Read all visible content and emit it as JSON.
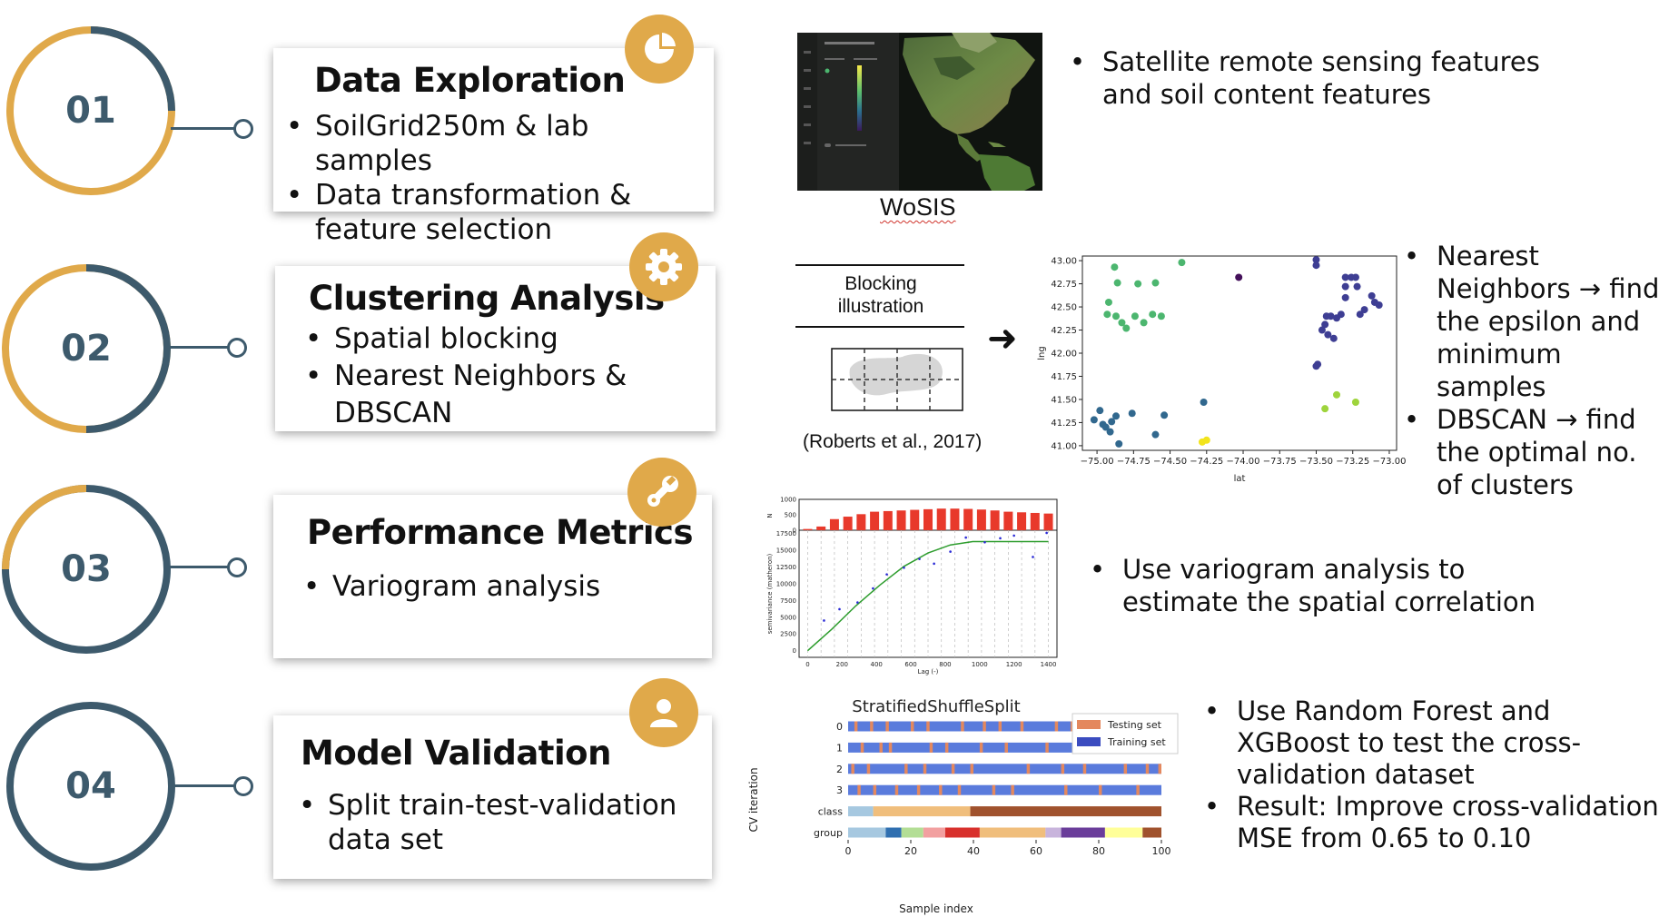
{
  "colors": {
    "accent_gold": "#e0a94a",
    "accent_slate": "#3d5a6c"
  },
  "steps": [
    {
      "number": "01",
      "title": "Data Exploration",
      "icon": "pie-chart-icon",
      "bullets": [
        "SoilGrid250m & lab samples",
        "Data transformation & feature selection"
      ]
    },
    {
      "number": "02",
      "title": "Clustering Analysis",
      "icon": "gear-icon",
      "bullets": [
        "Spatial blocking",
        "Nearest Neighbors  & DBSCAN"
      ]
    },
    {
      "number": "03",
      "title": "Performance Metrics",
      "icon": "wrench-icon",
      "bullets": [
        "Variogram analysis"
      ]
    },
    {
      "number": "04",
      "title": "Model Validation",
      "icon": "user-icon",
      "bullets": [
        "Split train-test-validation data set"
      ]
    }
  ],
  "figures": {
    "wosis_caption": "WoSIS",
    "blocking_title": "Blocking illustration",
    "blocking_citation": "(Roberts et al., 2017)",
    "arrow": "➜"
  },
  "notes": {
    "row1": [
      "Satellite remote sensing features and soil content features"
    ],
    "row2": [
      "Nearest Neighbors → find the epsilon and minimum samples",
      "DBSCAN → find the optimal no. of clusters"
    ],
    "row3": [
      "Use variogram analysis to estimate the spatial correlation"
    ],
    "row4": [
      "Use Random Forest and XGBoost to test the cross-validation dataset",
      "Result: Improve cross-validation MSE from 0.65 to 0.10"
    ]
  },
  "chart_data": [
    {
      "type": "scatter",
      "title": "",
      "xlabel": "lat",
      "ylabel": "lng",
      "xlim": [
        -75.1,
        -72.95
      ],
      "ylim": [
        40.95,
        43.05
      ],
      "xticks": [
        "−75.00",
        "−74.75",
        "−74.50",
        "−74.25",
        "−74.00",
        "−73.75",
        "−73.50",
        "−73.25",
        "−73.00"
      ],
      "yticks": [
        "41.00",
        "41.25",
        "41.50",
        "41.75",
        "42.00",
        "42.25",
        "42.50",
        "42.75",
        "43.00"
      ],
      "series": [
        {
          "name": "cluster-green",
          "color": "#4cb66f",
          "points": [
            [
              -74.88,
              42.93
            ],
            [
              -74.92,
              42.55
            ],
            [
              -74.86,
              42.76
            ],
            [
              -74.72,
              42.75
            ],
            [
              -74.6,
              42.76
            ],
            [
              -74.42,
              42.98
            ],
            [
              -74.93,
              42.42
            ],
            [
              -74.87,
              42.4
            ],
            [
              -74.83,
              42.33
            ],
            [
              -74.8,
              42.27
            ],
            [
              -74.74,
              42.4
            ],
            [
              -74.68,
              42.33
            ],
            [
              -74.62,
              42.42
            ],
            [
              -74.56,
              42.4
            ]
          ]
        },
        {
          "name": "cluster-blue",
          "color": "#31688e",
          "points": [
            [
              -75.02,
              41.28
            ],
            [
              -74.98,
              41.38
            ],
            [
              -74.96,
              41.23
            ],
            [
              -74.94,
              41.2
            ],
            [
              -74.91,
              41.15
            ],
            [
              -74.9,
              41.26
            ],
            [
              -74.87,
              41.32
            ],
            [
              -74.85,
              41.02
            ],
            [
              -74.76,
              41.35
            ],
            [
              -74.6,
              41.12
            ],
            [
              -74.54,
              41.33
            ],
            [
              -74.27,
              41.47
            ]
          ]
        },
        {
          "name": "cluster-purple",
          "color": "#3e3e93",
          "points": [
            [
              -73.5,
              43.01
            ],
            [
              -73.5,
              42.95
            ],
            [
              -73.3,
              42.82
            ],
            [
              -73.26,
              42.82
            ],
            [
              -73.23,
              42.82
            ],
            [
              -73.3,
              42.72
            ],
            [
              -73.22,
              42.72
            ],
            [
              -73.12,
              42.62
            ],
            [
              -73.1,
              42.55
            ],
            [
              -73.17,
              42.47
            ],
            [
              -73.2,
              42.42
            ],
            [
              -73.33,
              42.42
            ],
            [
              -73.4,
              42.4
            ],
            [
              -73.43,
              42.4
            ],
            [
              -73.36,
              42.38
            ],
            [
              -73.44,
              42.31
            ],
            [
              -73.46,
              42.25
            ],
            [
              -73.42,
              42.2
            ],
            [
              -73.38,
              42.16
            ],
            [
              -73.49,
              41.88
            ],
            [
              -73.5,
              41.86
            ],
            [
              -73.3,
              42.6
            ],
            [
              -73.07,
              42.52
            ]
          ]
        },
        {
          "name": "cluster-dark",
          "color": "#44105a",
          "points": [
            [
              -74.03,
              42.82
            ]
          ]
        },
        {
          "name": "cluster-lime",
          "color": "#9ed43c",
          "points": [
            [
              -73.44,
              41.4
            ],
            [
              -73.36,
              41.55
            ],
            [
              -73.23,
              41.47
            ]
          ]
        },
        {
          "name": "cluster-yellow",
          "color": "#f2e41d",
          "points": [
            [
              -74.28,
              41.04
            ],
            [
              -74.25,
              41.06
            ]
          ]
        }
      ]
    },
    {
      "type": "line",
      "title": "",
      "xlabel": "Lag (-)",
      "ylabel": "semivariance (matheron)",
      "xlim": [
        -50,
        1450
      ],
      "ylim": [
        -1000,
        18000
      ],
      "xticks": [
        0,
        200,
        400,
        600,
        800,
        1000,
        1200,
        1400
      ],
      "yticks": [
        0,
        2500,
        5000,
        7500,
        10000,
        12500,
        15000,
        17500
      ],
      "model_curve": [
        [
          0,
          0
        ],
        [
          140,
          3200
        ],
        [
          280,
          6700
        ],
        [
          420,
          9800
        ],
        [
          560,
          12600
        ],
        [
          700,
          14600
        ],
        [
          830,
          15800
        ],
        [
          960,
          16300
        ],
        [
          1400,
          16300
        ]
      ],
      "empirical_points": [
        [
          95,
          4500
        ],
        [
          185,
          6200
        ],
        [
          290,
          7200
        ],
        [
          380,
          9300
        ],
        [
          460,
          11400
        ],
        [
          560,
          12400
        ],
        [
          650,
          13700
        ],
        [
          735,
          13000
        ],
        [
          830,
          14800
        ],
        [
          920,
          16900
        ],
        [
          1030,
          16200
        ],
        [
          1120,
          16800
        ],
        [
          1200,
          17200
        ],
        [
          1310,
          14000
        ],
        [
          1390,
          17600
        ]
      ],
      "histogram": {
        "ylabel": "N",
        "yticks": [
          0,
          500,
          1000
        ],
        "counts": [
          40,
          120,
          360,
          440,
          520,
          600,
          620,
          640,
          660,
          680,
          700,
          700,
          690,
          670,
          640,
          600,
          580,
          560,
          540
        ]
      }
    },
    {
      "type": "heatmap",
      "title": "StratifiedShuffleSplit",
      "xlabel": "Sample index",
      "ylabel": "CV iteration",
      "xlim": [
        0,
        100
      ],
      "xticks": [
        0,
        20,
        40,
        60,
        80,
        100
      ],
      "row_labels": [
        "0",
        "1",
        "2",
        "3",
        "class",
        "group"
      ],
      "legend": [
        "Testing set",
        "Training set"
      ],
      "train_color": "#5a7bdc",
      "test_color": "#e4885e",
      "test_indices": [
        [
          2,
          7,
          12,
          20,
          25,
          36,
          43,
          48,
          55,
          66,
          71,
          78,
          91,
          99
        ],
        [
          4,
          10,
          13,
          26,
          31,
          42,
          50,
          63,
          73,
          84,
          97
        ],
        [
          1,
          6,
          18,
          24,
          33,
          39,
          57,
          68,
          75,
          88,
          95,
          99
        ],
        [
          3,
          8,
          15,
          22,
          29,
          35,
          46,
          52,
          69,
          80,
          92
        ]
      ],
      "class_segments": [
        [
          0,
          8,
          "#a6c8e0"
        ],
        [
          8,
          39,
          "#f0be7c"
        ],
        [
          39,
          100,
          "#a0522d"
        ]
      ],
      "group_segments": [
        [
          0,
          12,
          "#a6c8e0"
        ],
        [
          12,
          17,
          "#2f6fb0"
        ],
        [
          17,
          24,
          "#b3de95"
        ],
        [
          24,
          31,
          "#f2a0a0"
        ],
        [
          31,
          42,
          "#d8302c"
        ],
        [
          42,
          63,
          "#f0be7c"
        ],
        [
          63,
          68,
          "#c8b4dc"
        ],
        [
          68,
          82,
          "#6a3d9a"
        ],
        [
          82,
          94,
          "#ffff99"
        ],
        [
          94,
          100,
          "#a0522d"
        ]
      ]
    }
  ]
}
